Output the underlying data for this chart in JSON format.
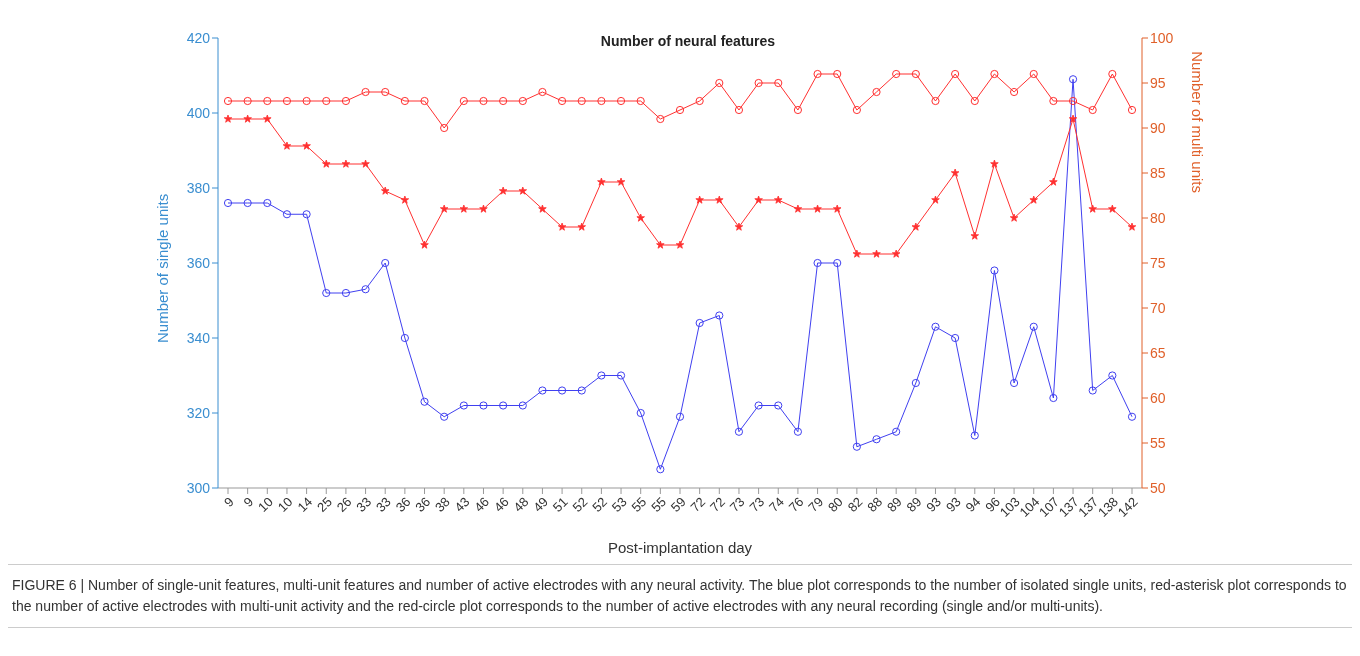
{
  "chart_data": {
    "type": "line",
    "title": "Number of neural features",
    "xlabel": "Post-implantation day",
    "ylabel": "Number of single units",
    "y2label": "Number of multi units",
    "categories": [
      "9",
      "9",
      "10",
      "10",
      "14",
      "25",
      "26",
      "33",
      "33",
      "36",
      "36",
      "38",
      "43",
      "46",
      "46",
      "48",
      "49",
      "51",
      "52",
      "52",
      "53",
      "55",
      "55",
      "59",
      "72",
      "72",
      "73",
      "73",
      "74",
      "76",
      "79",
      "80",
      "82",
      "88",
      "89",
      "89",
      "93",
      "93",
      "94",
      "96",
      "103",
      "104",
      "107",
      "137",
      "137",
      "138",
      "142"
    ],
    "series": [
      {
        "color": "#4040f0",
        "marker": "circle",
        "values": [
          376,
          376,
          376,
          373,
          373,
          352,
          352,
          353,
          360,
          340,
          323,
          319,
          322,
          322,
          322,
          322,
          326,
          326,
          326,
          330,
          330,
          320,
          305,
          319,
          344,
          346,
          315,
          322,
          322,
          315,
          360,
          360,
          311,
          313,
          315,
          328,
          343,
          340,
          314,
          358,
          328,
          343,
          324,
          409,
          326,
          330,
          319
        ]
      },
      {
        "color": "#ff3030",
        "marker": "star",
        "axis": "y2",
        "values": [
          91,
          91,
          91,
          88,
          88,
          86,
          86,
          86,
          83,
          82,
          77,
          81,
          81,
          81,
          83,
          83,
          81,
          79,
          79,
          84,
          84,
          80,
          77,
          77,
          82,
          82,
          79,
          82,
          82,
          81,
          81,
          81,
          76,
          76,
          76,
          79,
          82,
          85,
          78,
          86,
          80,
          82,
          84,
          91,
          81,
          81,
          79
        ]
      },
      {
        "color": "#ff3030",
        "marker": "circle",
        "axis": "y2",
        "values": [
          93,
          93,
          93,
          93,
          93,
          93,
          93,
          94,
          94,
          93,
          93,
          90,
          93,
          93,
          93,
          93,
          94,
          93,
          93,
          93,
          93,
          93,
          91,
          92,
          93,
          95,
          92,
          95,
          95,
          92,
          96,
          96,
          92,
          94,
          96,
          96,
          93,
          96,
          93,
          96,
          94,
          96,
          93,
          93,
          92,
          96,
          92
        ]
      }
    ],
    "ylim": [
      300,
      420
    ],
    "yticks": [
      300,
      320,
      340,
      360,
      380,
      400,
      420
    ],
    "y2lim": [
      50,
      100
    ],
    "y2ticks": [
      50,
      55,
      60,
      65,
      70,
      75,
      80,
      85,
      90,
      95,
      100
    ],
    "grid": false,
    "legend": false,
    "annotations": [
      "FIGURE 6 | Number of single-unit features, multi-unit features and number of active electrodes with any neural activity. The blue plot corresponds to the number of isolated single units, red-asterisk plot corresponds to the number of active electrodes with multi-unit activity and the red-circle plot corresponds to the number of active electrodes with any neural recording (single and/or multi-units)."
    ]
  }
}
